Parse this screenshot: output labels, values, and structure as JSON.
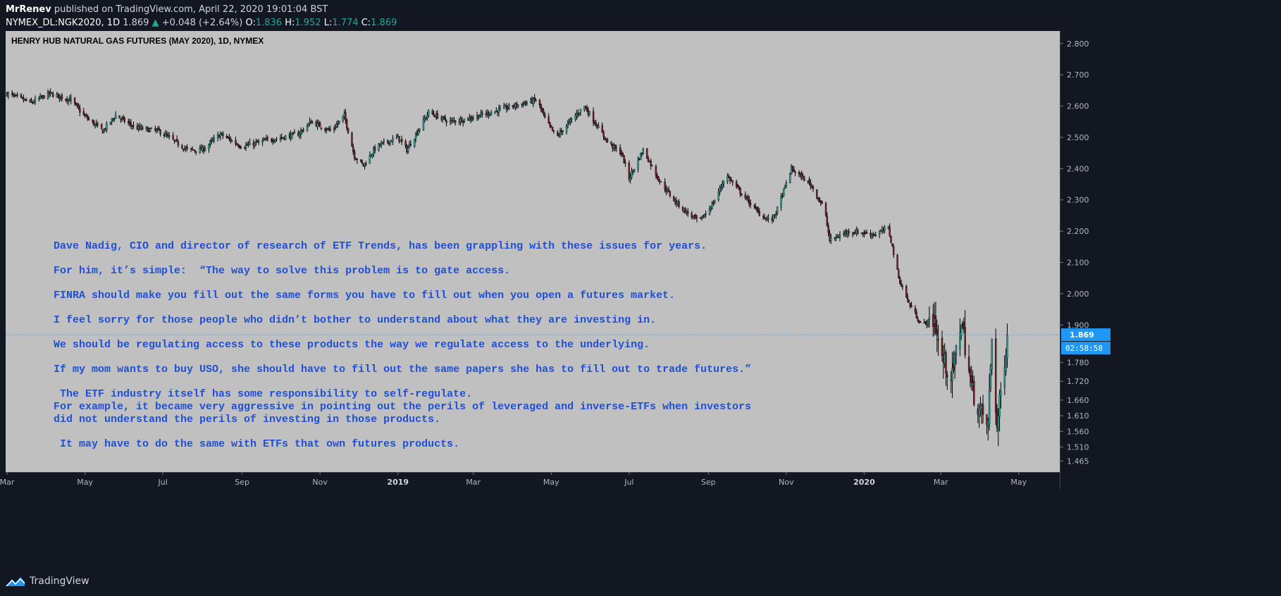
{
  "header": {
    "author": "MrRenev",
    "published": "published on TradingView.com, April 22, 2020 19:01:04 BST",
    "symbol": "NYMEX_DL:NGK2020, 1D",
    "last": "1.869",
    "change": "+0.048 (+2.64%)",
    "o_label": "O:",
    "o": "1.836",
    "h_label": "H:",
    "h": "1.952",
    "l_label": "L:",
    "l": "1.774",
    "c_label": "C:",
    "c": "1.869"
  },
  "footer": {
    "brand": "TradingView"
  },
  "colors": {
    "frame": "#131722",
    "plot_bg": "#c0c0c0",
    "note_text": "#1f4fd6",
    "up": "#26a69a",
    "down": "#7a1f2b",
    "wick": "#000000",
    "price_line": "#2196f3"
  },
  "current_price_label": "1.869",
  "countdown_label": "02:58:58",
  "note_lines": [
    "Dave Nadig, CIO and director of research of ETF Trends, has been grappling with these issues for years.",
    "For him, it’s simple:  “The way to solve this problem is to gate access.",
    "FINRA should make you fill out the same forms you have to fill out when you open a futures market.",
    "I feel sorry for those people who didn’t bother to understand about what they are investing in.",
    "We should be regulating access to these products the way we regulate access to the underlying.",
    "If my mom wants to buy USO, she should have to fill out the same papers she has to fill out to trade futures.”",
    " The ETF industry itself has some responsibility to self-regulate.",
    "For example, it became very aggressive in pointing out the perils of leveraged and inverse-ETFs when investors",
    "did not understand the perils of investing in those products.",
    " It may have to do the same with ETFs that own futures products."
  ],
  "chart_data": {
    "type": "candlestick",
    "title": "HENRY HUB NATURAL GAS FUTURES (MAY 2020), 1D, NYMEX",
    "x_range": [
      "2018-03-01",
      "2020-06-01"
    ],
    "ylim": [
      1.43,
      2.84
    ],
    "y_ticks": [
      "2.800",
      "2.700",
      "2.600",
      "2.500",
      "2.400",
      "2.300",
      "2.200",
      "2.100",
      "2.000",
      "1.900",
      "1.780",
      "1.720",
      "1.660",
      "1.610",
      "1.560",
      "1.510",
      "1.465"
    ],
    "x_ticks": [
      {
        "label": "Mar",
        "date": "2018-03-01",
        "bold": false
      },
      {
        "label": "May",
        "date": "2018-05-01",
        "bold": false
      },
      {
        "label": "Jul",
        "date": "2018-07-01",
        "bold": false
      },
      {
        "label": "Sep",
        "date": "2018-09-01",
        "bold": false
      },
      {
        "label": "Nov",
        "date": "2018-11-01",
        "bold": false
      },
      {
        "label": "2019",
        "date": "2019-01-01",
        "bold": true
      },
      {
        "label": "Mar",
        "date": "2019-03-01",
        "bold": false
      },
      {
        "label": "May",
        "date": "2019-05-01",
        "bold": false
      },
      {
        "label": "Jul",
        "date": "2019-07-01",
        "bold": false
      },
      {
        "label": "Sep",
        "date": "2019-09-01",
        "bold": false
      },
      {
        "label": "Nov",
        "date": "2019-11-01",
        "bold": false
      },
      {
        "label": "2020",
        "date": "2020-01-01",
        "bold": true
      },
      {
        "label": "Mar",
        "date": "2020-03-01",
        "bold": false
      },
      {
        "label": "May",
        "date": "2020-05-01",
        "bold": false
      }
    ],
    "current_price": 1.869,
    "close_path": [
      [
        "2018-03-01",
        2.64
      ],
      [
        "2018-03-20",
        2.61
      ],
      [
        "2018-04-03",
        2.64
      ],
      [
        "2018-04-20",
        2.62
      ],
      [
        "2018-04-30",
        2.57
      ],
      [
        "2018-05-15",
        2.52
      ],
      [
        "2018-05-25",
        2.57
      ],
      [
        "2018-06-10",
        2.53
      ],
      [
        "2018-06-28",
        2.52
      ],
      [
        "2018-07-20",
        2.46
      ],
      [
        "2018-08-01",
        2.46
      ],
      [
        "2018-08-15",
        2.51
      ],
      [
        "2018-09-01",
        2.47
      ],
      [
        "2018-09-20",
        2.49
      ],
      [
        "2018-10-15",
        2.51
      ],
      [
        "2018-10-25",
        2.55
      ],
      [
        "2018-11-10",
        2.52
      ],
      [
        "2018-11-20",
        2.57
      ],
      [
        "2018-11-28",
        2.44
      ],
      [
        "2018-12-05",
        2.41
      ],
      [
        "2018-12-15",
        2.47
      ],
      [
        "2019-01-01",
        2.5
      ],
      [
        "2019-01-08",
        2.46
      ],
      [
        "2019-01-25",
        2.58
      ],
      [
        "2019-02-10",
        2.55
      ],
      [
        "2019-02-25",
        2.56
      ],
      [
        "2019-03-15",
        2.58
      ],
      [
        "2019-04-01",
        2.6
      ],
      [
        "2019-04-20",
        2.62
      ],
      [
        "2019-04-26",
        2.56
      ],
      [
        "2019-05-05",
        2.5
      ],
      [
        "2019-05-20",
        2.57
      ],
      [
        "2019-05-27",
        2.6
      ],
      [
        "2019-06-15",
        2.48
      ],
      [
        "2019-06-25",
        2.45
      ],
      [
        "2019-07-01",
        2.37
      ],
      [
        "2019-07-12",
        2.46
      ],
      [
        "2019-07-25",
        2.36
      ],
      [
        "2019-08-05",
        2.3
      ],
      [
        "2019-08-15",
        2.26
      ],
      [
        "2019-08-25",
        2.23
      ],
      [
        "2019-09-05",
        2.29
      ],
      [
        "2019-09-15",
        2.38
      ],
      [
        "2019-09-25",
        2.33
      ],
      [
        "2019-10-10",
        2.26
      ],
      [
        "2019-10-20",
        2.23
      ],
      [
        "2019-10-25",
        2.27
      ],
      [
        "2019-11-05",
        2.4
      ],
      [
        "2019-11-20",
        2.35
      ],
      [
        "2019-12-01",
        2.27
      ],
      [
        "2019-12-05",
        2.17
      ],
      [
        "2019-12-20",
        2.2
      ],
      [
        "2020-01-10",
        2.19
      ],
      [
        "2020-01-20",
        2.21
      ],
      [
        "2020-01-28",
        2.05
      ],
      [
        "2020-02-05",
        1.97
      ],
      [
        "2020-02-15",
        1.9
      ],
      [
        "2020-02-25",
        1.92
      ],
      [
        "2020-03-01",
        1.8
      ],
      [
        "2020-03-10",
        1.73
      ],
      [
        "2020-03-17",
        1.92
      ],
      [
        "2020-03-25",
        1.7
      ],
      [
        "2020-04-01",
        1.62
      ],
      [
        "2020-04-07",
        1.58
      ],
      [
        "2020-04-10",
        1.86
      ],
      [
        "2020-04-14",
        1.57
      ],
      [
        "2020-04-18",
        1.72
      ],
      [
        "2020-04-22",
        1.869
      ]
    ]
  }
}
